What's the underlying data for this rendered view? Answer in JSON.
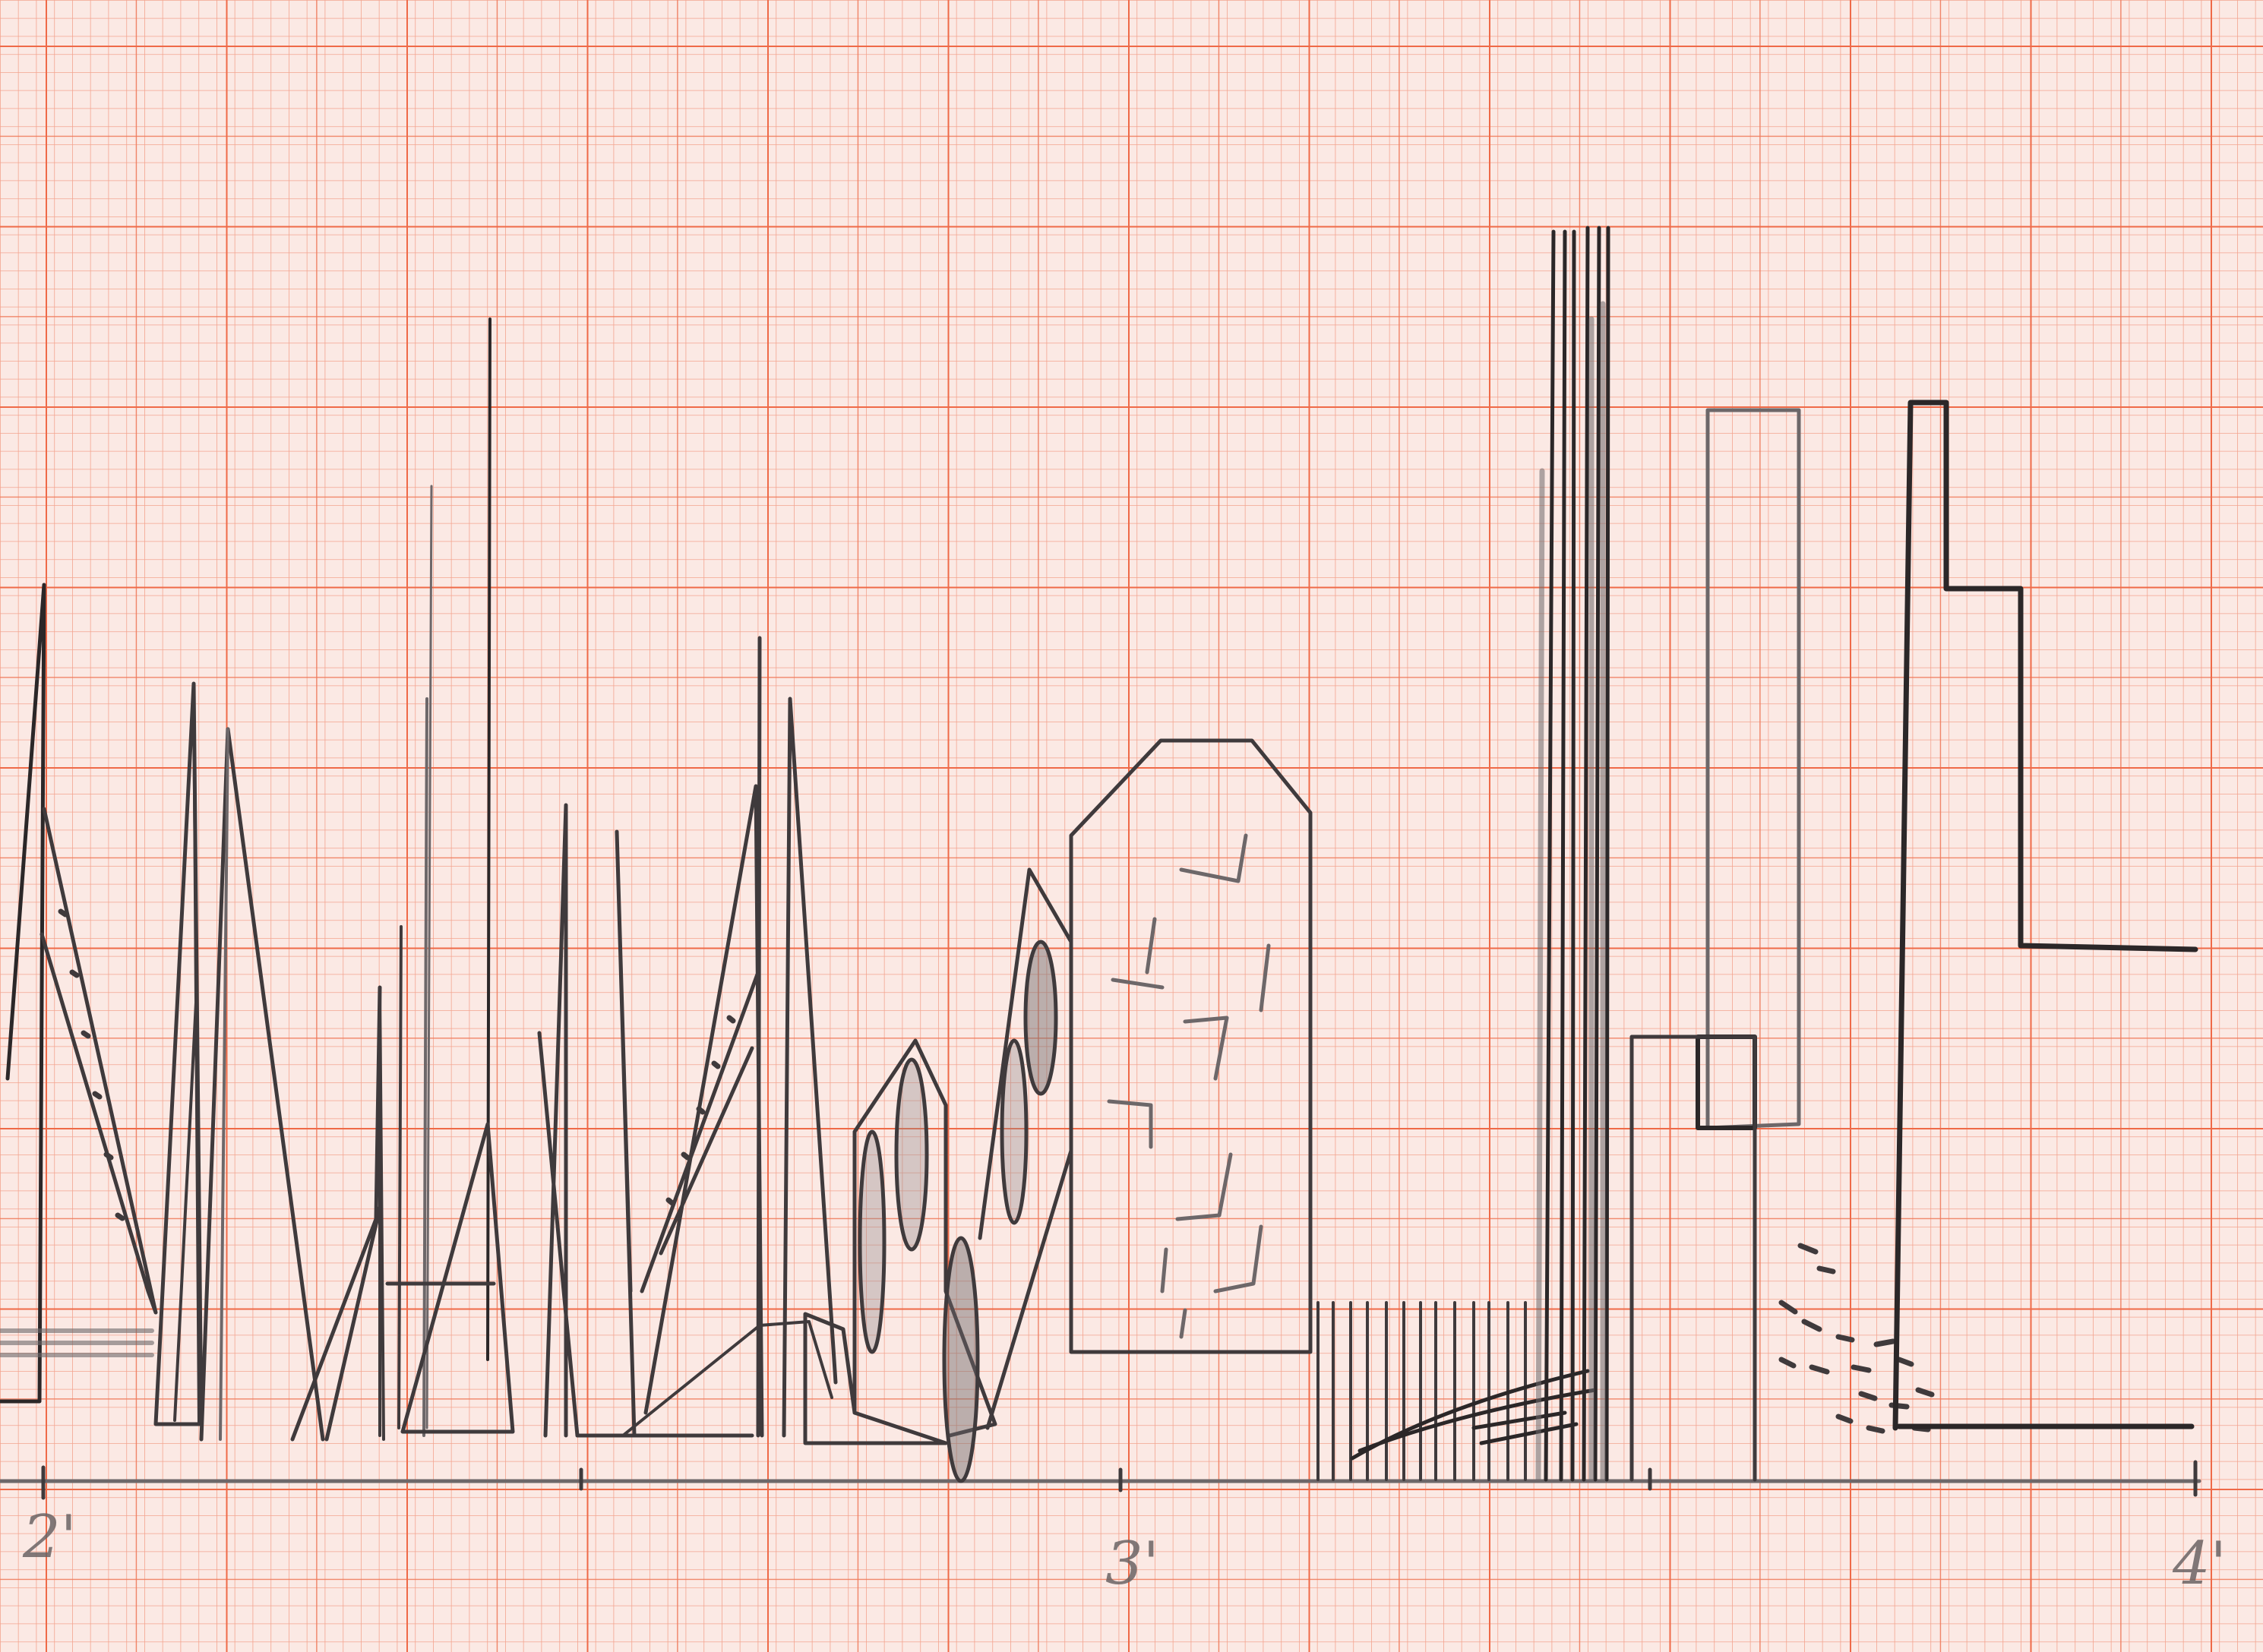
{
  "sheet": {
    "paper_color": "#fbe9e4",
    "grid_major_color": "#ef6a48",
    "grid_minor_color": "#f3a48f",
    "pencil_color": "#3f3a3c"
  },
  "axis": {
    "tick_labels": [
      "2'",
      "3'",
      "4'"
    ]
  }
}
